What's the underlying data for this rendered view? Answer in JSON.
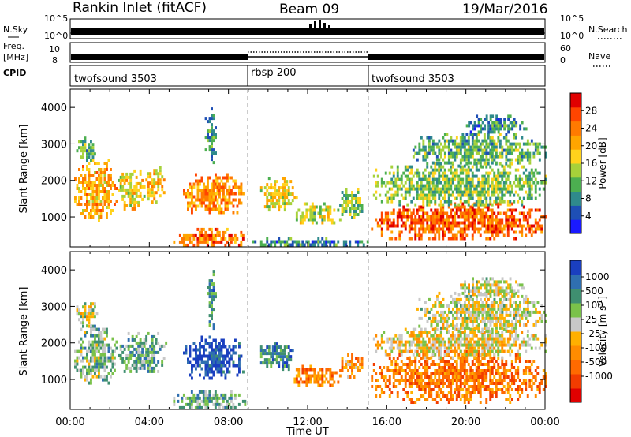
{
  "header": {
    "station": "Rankin Inlet (fitACF)",
    "beam": "Beam 09",
    "date": "19/Mar/2016"
  },
  "status_panels": {
    "left_labels": {
      "nsky": "N.Sky",
      "freq": "Freq.",
      "freq_unit": "[MHz]",
      "cpid": "CPID"
    },
    "right_labels": {
      "nsearch": "N.Search",
      "nave": "Nave"
    },
    "noise_ticks_left": [
      "10^5",
      "10^0"
    ],
    "noise_ticks_right": [
      "10^5",
      "10^0"
    ],
    "freq_ticks_left": [
      "10",
      "8"
    ],
    "nave_ticks_right": [
      "60",
      "0"
    ],
    "cpid_segments": [
      {
        "label": "twofsound 3503",
        "start_hour": 0,
        "end_hour": 9
      },
      {
        "label": "rbsp 200",
        "start_hour": 9,
        "end_hour": 15
      },
      {
        "label": "twofsound 3503",
        "start_hour": 15,
        "end_hour": 24
      }
    ]
  },
  "chart_data": [
    {
      "type": "heatmap",
      "name": "power",
      "ylabel": "Slant Range [km]",
      "ylim": [
        180,
        4500
      ],
      "yticks": [
        1000,
        2000,
        3000,
        4000
      ],
      "xlim_hours": [
        0,
        24
      ],
      "colorbar": {
        "label": "Power [dB]",
        "ticks": [
          "4",
          "8",
          "12",
          "16",
          "20",
          "24",
          "28"
        ],
        "colors": [
          "#1a1aff",
          "#1e4fb5",
          "#2f8a8c",
          "#4caf50",
          "#a6d13a",
          "#ffd21c",
          "#ffa500",
          "#ff7a00",
          "#ff4500",
          "#e00000"
        ]
      },
      "echo_regions": [
        {
          "x0": 0.2,
          "x1": 2.3,
          "y0": 900,
          "y1": 2600,
          "level": 0.65
        },
        {
          "x0": 0.3,
          "x1": 1.2,
          "y0": 2500,
          "y1": 3200,
          "level": 0.35
        },
        {
          "x0": 2.4,
          "x1": 3.7,
          "y0": 1200,
          "y1": 2300,
          "level": 0.55
        },
        {
          "x0": 3.8,
          "x1": 4.7,
          "y0": 1400,
          "y1": 2400,
          "level": 0.6
        },
        {
          "x0": 5.7,
          "x1": 8.7,
          "y0": 1100,
          "y1": 2200,
          "level": 0.7
        },
        {
          "x0": 6.8,
          "x1": 7.3,
          "y0": 2400,
          "y1": 4000,
          "level": 0.3
        },
        {
          "x0": 5.2,
          "x1": 8.8,
          "y0": 200,
          "y1": 700,
          "level": 0.75
        },
        {
          "x0": 9.6,
          "x1": 11.4,
          "y0": 1200,
          "y1": 2100,
          "level": 0.5
        },
        {
          "x0": 11.3,
          "x1": 13.6,
          "y0": 800,
          "y1": 1400,
          "level": 0.45
        },
        {
          "x0": 13.6,
          "x1": 14.8,
          "y0": 1000,
          "y1": 1800,
          "level": 0.4
        },
        {
          "x0": 9.0,
          "x1": 15.0,
          "y0": 200,
          "y1": 450,
          "level": 0.25
        },
        {
          "x0": 15.2,
          "x1": 24.0,
          "y0": 400,
          "y1": 1400,
          "level": 0.8
        },
        {
          "x0": 15.3,
          "x1": 24.0,
          "y0": 1300,
          "y1": 2500,
          "level": 0.4
        },
        {
          "x0": 17.3,
          "x1": 24.0,
          "y0": 2400,
          "y1": 3300,
          "level": 0.35
        },
        {
          "x0": 20.0,
          "x1": 23.0,
          "y0": 3300,
          "y1": 3800,
          "level": 0.25
        }
      ]
    },
    {
      "type": "heatmap",
      "name": "velocity",
      "ylabel": "Slant Range [km]",
      "ylim": [
        180,
        4500
      ],
      "yticks": [
        1000,
        2000,
        3000,
        4000
      ],
      "xlabel": "Time UT",
      "xlim_hours": [
        0,
        24
      ],
      "xticks": [
        "00:00",
        "04:00",
        "08:00",
        "12:00",
        "16:00",
        "20:00",
        "00:00"
      ],
      "colorbar": {
        "label": "Velocity [m s",
        "label_sup": "-1",
        "label_close": "]",
        "ticks": [
          "1000",
          "500",
          "100",
          "25",
          "-25",
          "-100",
          "-500",
          "-1000"
        ],
        "colors": [
          "#1a3fbf",
          "#2f6fb0",
          "#3f8f70",
          "#7ac24a",
          "#c8c8c8",
          "#ffb000",
          "#ff8c00",
          "#ff6a00",
          "#f23c00",
          "#e00000"
        ]
      },
      "echo_regions": [
        {
          "x0": 0.2,
          "x1": 2.3,
          "y0": 900,
          "y1": 2500,
          "level": 0.35
        },
        {
          "x0": 0.3,
          "x1": 1.3,
          "y0": 2500,
          "y1": 3200,
          "level": 0.45
        },
        {
          "x0": 2.4,
          "x1": 4.8,
          "y0": 1200,
          "y1": 2300,
          "level": 0.3
        },
        {
          "x0": 5.7,
          "x1": 8.7,
          "y0": 1000,
          "y1": 2200,
          "level": 0.05
        },
        {
          "x0": 6.9,
          "x1": 7.3,
          "y0": 2400,
          "y1": 4000,
          "level": 0.25
        },
        {
          "x0": 5.2,
          "x1": 8.8,
          "y0": 200,
          "y1": 700,
          "level": 0.3
        },
        {
          "x0": 9.6,
          "x1": 11.2,
          "y0": 1300,
          "y1": 2100,
          "level": 0.2
        },
        {
          "x0": 11.2,
          "x1": 13.6,
          "y0": 800,
          "y1": 1400,
          "level": 0.7
        },
        {
          "x0": 13.6,
          "x1": 14.8,
          "y0": 1100,
          "y1": 1800,
          "level": 0.65
        },
        {
          "x0": 15.2,
          "x1": 24.0,
          "y0": 400,
          "y1": 1800,
          "level": 0.72
        },
        {
          "x0": 15.3,
          "x1": 24.0,
          "y0": 1600,
          "y1": 2500,
          "level": 0.5
        },
        {
          "x0": 17.5,
          "x1": 24.0,
          "y0": 2300,
          "y1": 3400,
          "level": 0.45
        },
        {
          "x0": 19.5,
          "x1": 23.0,
          "y0": 3300,
          "y1": 3800,
          "level": 0.45
        }
      ]
    }
  ]
}
